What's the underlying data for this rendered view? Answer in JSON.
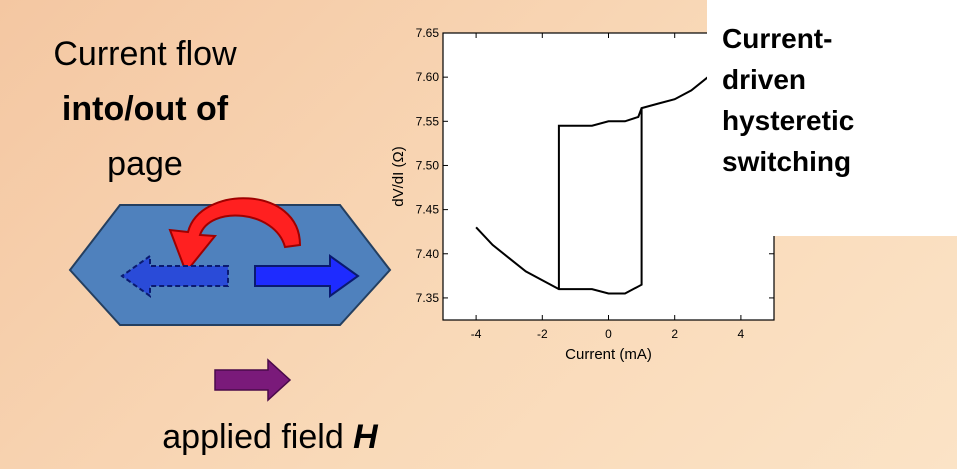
{
  "slide": {
    "line1": "Current flow",
    "line2": "into/out of",
    "line3": "page",
    "field_text": "applied field ",
    "field_symbol": "H",
    "caption": [
      "Current-",
      "driven",
      "hysteretic",
      "switching"
    ]
  },
  "chart_data": {
    "type": "line",
    "x_label": "Current (mA)",
    "y_label": "dV/dI (Ω)",
    "color": "#000000",
    "x": [
      -4,
      -3.5,
      -3,
      -2.5,
      -2,
      -1.5,
      -1,
      -0.5,
      0,
      0.5,
      1,
      1,
      1.5,
      2,
      2.5,
      3,
      2.5,
      2,
      1.5,
      1,
      0.9,
      0.5,
      0,
      -0.5,
      -1,
      -1.5,
      -1.5
    ],
    "values": [
      7.43,
      7.41,
      7.395,
      7.38,
      7.37,
      7.36,
      7.36,
      7.36,
      7.355,
      7.355,
      7.365,
      7.565,
      7.57,
      7.575,
      7.585,
      7.6,
      7.585,
      7.575,
      7.57,
      7.565,
      7.555,
      7.55,
      7.55,
      7.545,
      7.545,
      7.545,
      7.36
    ],
    "xlim": [
      -5,
      5
    ],
    "ylim": [
      7.325,
      7.65
    ],
    "xticks": [
      -4,
      -2,
      0,
      2,
      4
    ],
    "yticks": [
      7.35,
      {
        "value": 7.4,
        "label": "7.40"
      },
      7.45,
      {
        "value": 7.5,
        "label": "7.50"
      },
      7.55,
      {
        "value": 7.6,
        "label": "7.60"
      },
      7.65
    ]
  }
}
